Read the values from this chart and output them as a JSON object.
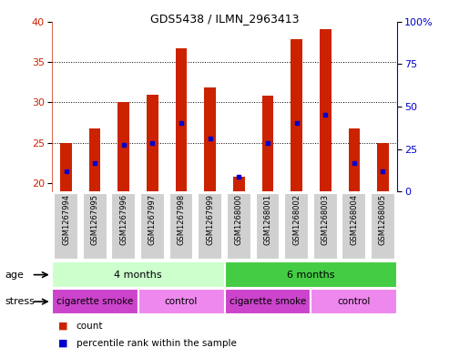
{
  "title": "GDS5438 / ILMN_2963413",
  "samples": [
    "GSM1267994",
    "GSM1267995",
    "GSM1267996",
    "GSM1267997",
    "GSM1267998",
    "GSM1267999",
    "GSM1268000",
    "GSM1268001",
    "GSM1268002",
    "GSM1268003",
    "GSM1268004",
    "GSM1268005"
  ],
  "counts": [
    25.0,
    26.8,
    30.0,
    31.0,
    36.7,
    31.8,
    20.8,
    30.8,
    37.8,
    39.0,
    26.8,
    25.0
  ],
  "percentile_ranks_left_axis": [
    21.5,
    22.5,
    24.8,
    25.0,
    27.5,
    25.5,
    20.8,
    25.0,
    27.5,
    28.5,
    22.5,
    21.5
  ],
  "ylim_left": [
    19,
    40
  ],
  "ylim_right": [
    0,
    100
  ],
  "yticks_left": [
    20,
    25,
    30,
    35,
    40
  ],
  "yticks_right": [
    0,
    25,
    50,
    75,
    100
  ],
  "ytick_right_labels": [
    "0",
    "25",
    "50",
    "75",
    "100%"
  ],
  "bar_color": "#cc2200",
  "dot_color": "#0000cc",
  "bg_color": "#ffffff",
  "plot_bg": "#ffffff",
  "tick_label_bg": "#d0d0d0",
  "age_4months_color": "#ccffcc",
  "age_6months_color": "#44cc44",
  "stress_cig_color": "#cc44cc",
  "stress_ctrl_color": "#ee88ee",
  "age_groups": [
    {
      "label": "4 months",
      "start": 0,
      "end": 5
    },
    {
      "label": "6 months",
      "start": 6,
      "end": 11
    }
  ],
  "stress_groups": [
    {
      "label": "cigarette smoke",
      "start": 0,
      "end": 2
    },
    {
      "label": "control",
      "start": 3,
      "end": 5
    },
    {
      "label": "cigarette smoke",
      "start": 6,
      "end": 8
    },
    {
      "label": "control",
      "start": 9,
      "end": 11
    }
  ],
  "legend_count_label": "count",
  "legend_pct_label": "percentile rank within the sample",
  "age_label": "age",
  "stress_label": "stress",
  "bar_width": 0.4,
  "grid_lines": [
    25,
    30,
    35
  ],
  "grid_color": "#000000",
  "grid_lw": 0.7,
  "grid_ls": ":"
}
